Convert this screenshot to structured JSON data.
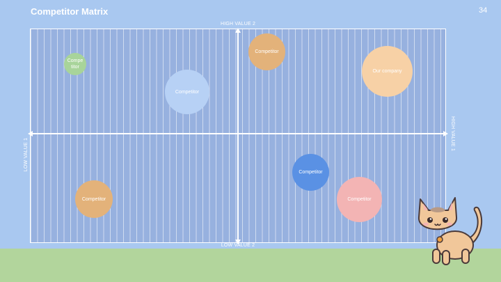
{
  "slide": {
    "title": "Competitor Matrix",
    "page_number": "34"
  },
  "axes": {
    "top": "HIGH VALUE 2",
    "bottom": "LOW VALUE 2",
    "left": "LOW VALUE 1",
    "right": "HIGH VALUE 1"
  },
  "bubbles": [
    {
      "label": "Compe\ntitor",
      "color": "#a8d49a"
    },
    {
      "label": "Competitor",
      "color": "#b7d1f5"
    },
    {
      "label": "Competitor",
      "color": "#e3b27a"
    },
    {
      "label": "Our company",
      "color": "#f7d1a6"
    },
    {
      "label": "Competitor",
      "color": "#5a91e4"
    },
    {
      "label": "Competitor",
      "color": "#f3b4b4"
    },
    {
      "label": "Competitor",
      "color": "#e3b27a"
    }
  ],
  "colors": {
    "background": "#a9c8f0",
    "ground": "#b2d59c",
    "matrix": "#97b1df"
  },
  "illustration": {
    "icon": "cat-mascot-icon"
  }
}
